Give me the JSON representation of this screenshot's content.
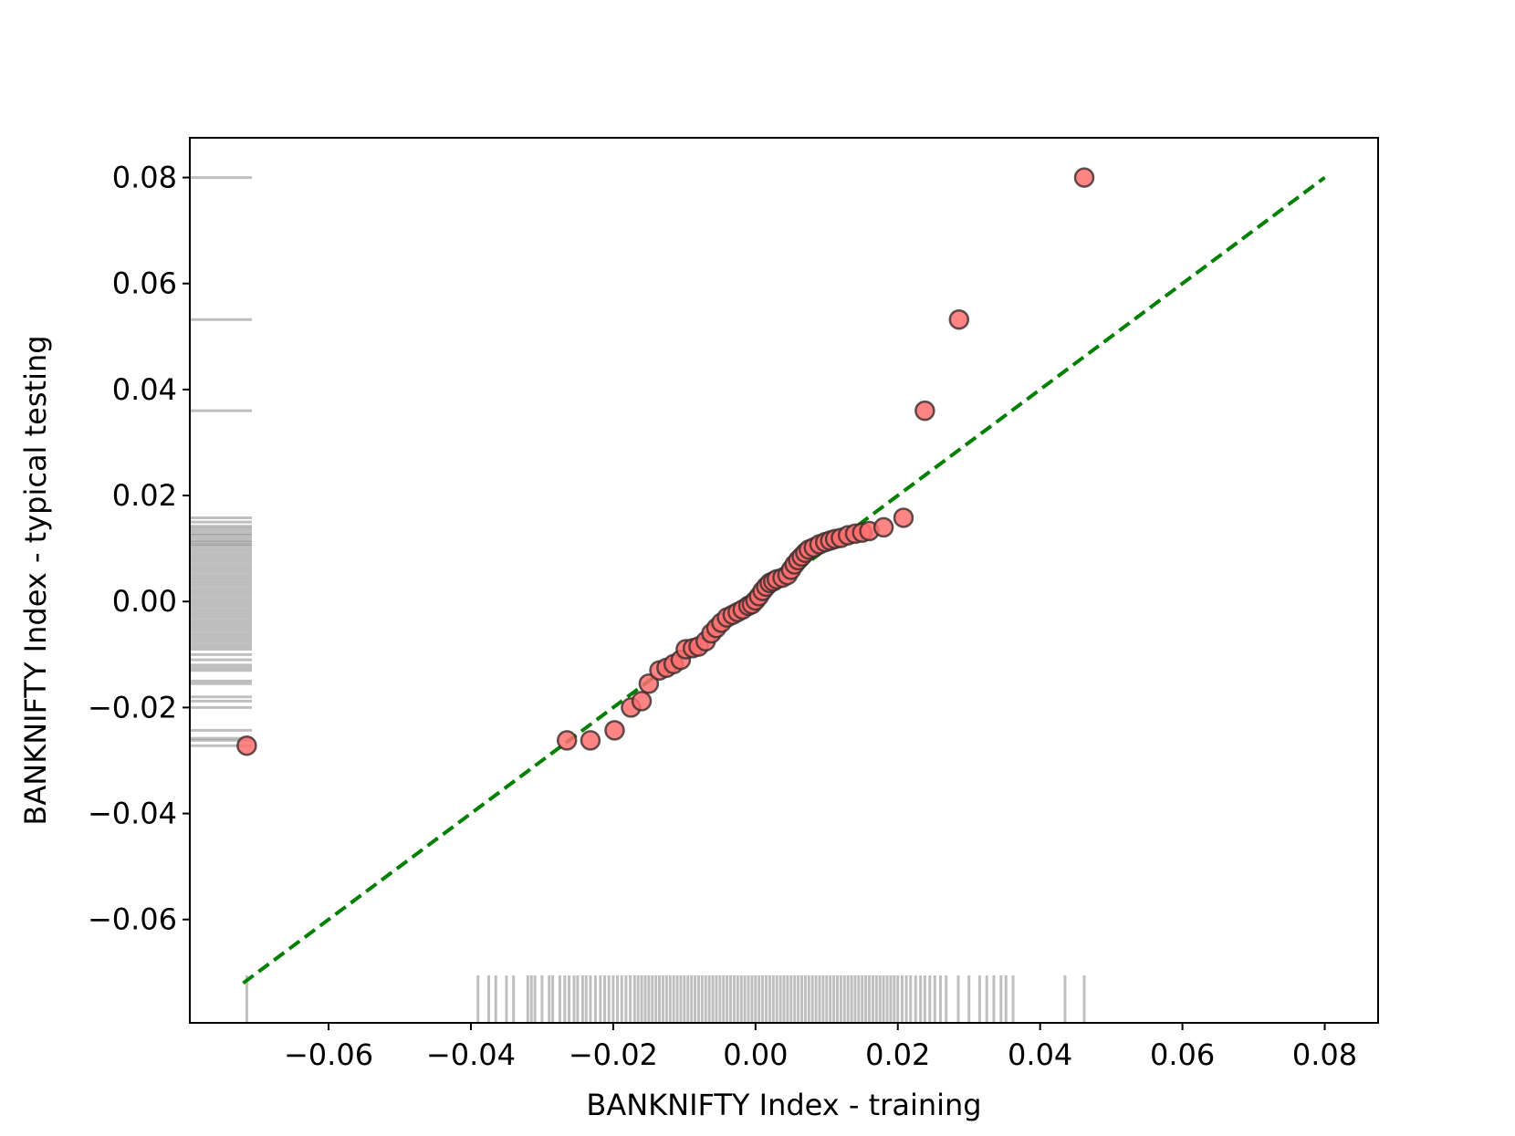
{
  "chart_data": {
    "type": "scatter",
    "title": "",
    "xlabel": "BANKNIFTY Index  - training",
    "ylabel": "BANKNIFTY Index - typical testing",
    "xlim": [
      -0.0795,
      0.0875
    ],
    "ylim": [
      -0.0795,
      0.0875
    ],
    "x_ticks": [
      -0.06,
      -0.04,
      -0.02,
      0.0,
      0.02,
      0.04,
      0.06,
      0.08
    ],
    "x_tick_labels": [
      "−0.06",
      "−0.04",
      "−0.02",
      "0.00",
      "0.02",
      "0.04",
      "0.06",
      "0.08"
    ],
    "y_ticks": [
      -0.06,
      -0.04,
      -0.02,
      0.0,
      0.02,
      0.04,
      0.06,
      0.08
    ],
    "y_tick_labels": [
      "−0.06",
      "−0.04",
      "−0.02",
      "0.00",
      "0.02",
      "0.04",
      "0.06",
      "0.08"
    ],
    "grid": false,
    "reference_line": {
      "from": [
        -0.072,
        -0.072
      ],
      "to": [
        0.08,
        0.08
      ],
      "style": "dashed",
      "color": "#008000"
    },
    "colors": {
      "marker_fill": "#ff6f6f",
      "marker_edge": "#3a2a2a",
      "rug": "#808080",
      "line": "#008000"
    },
    "series": [
      {
        "points": [
          [
            -0.0715,
            -0.0272
          ],
          [
            -0.0265,
            -0.0262
          ],
          [
            -0.0232,
            -0.0262
          ],
          [
            -0.0198,
            -0.0243
          ],
          [
            -0.0175,
            -0.02
          ],
          [
            -0.016,
            -0.0188
          ],
          [
            -0.015,
            -0.0155
          ],
          [
            -0.0135,
            -0.013
          ],
          [
            -0.0125,
            -0.0125
          ],
          [
            -0.0115,
            -0.0118
          ],
          [
            -0.0105,
            -0.011
          ],
          [
            -0.0098,
            -0.009
          ],
          [
            -0.0088,
            -0.0088
          ],
          [
            -0.008,
            -0.0085
          ],
          [
            -0.007,
            -0.0075
          ],
          [
            -0.0062,
            -0.006
          ],
          [
            -0.0055,
            -0.005
          ],
          [
            -0.0048,
            -0.004
          ],
          [
            -0.004,
            -0.003
          ],
          [
            -0.0032,
            -0.0025
          ],
          [
            -0.0025,
            -0.002
          ],
          [
            -0.0018,
            -0.0015
          ],
          [
            -0.001,
            -0.0008
          ],
          [
            -0.0005,
            -0.0005
          ],
          [
            0.0,
            0.0002
          ],
          [
            0.0005,
            0.001
          ],
          [
            0.001,
            0.002
          ],
          [
            0.0015,
            0.0028
          ],
          [
            0.002,
            0.0035
          ],
          [
            0.0025,
            0.0038
          ],
          [
            0.003,
            0.0042
          ],
          [
            0.0038,
            0.0045
          ],
          [
            0.0045,
            0.005
          ],
          [
            0.005,
            0.006
          ],
          [
            0.0055,
            0.007
          ],
          [
            0.006,
            0.0078
          ],
          [
            0.0065,
            0.0085
          ],
          [
            0.007,
            0.0092
          ],
          [
            0.0075,
            0.0098
          ],
          [
            0.0082,
            0.0102
          ],
          [
            0.009,
            0.0108
          ],
          [
            0.0098,
            0.0112
          ],
          [
            0.0105,
            0.0115
          ],
          [
            0.0112,
            0.0118
          ],
          [
            0.012,
            0.012
          ],
          [
            0.013,
            0.0125
          ],
          [
            0.014,
            0.0128
          ],
          [
            0.015,
            0.013
          ],
          [
            0.016,
            0.0133
          ],
          [
            0.018,
            0.014
          ],
          [
            0.0208,
            0.0158
          ],
          [
            0.0238,
            0.036
          ],
          [
            0.0286,
            0.0532
          ],
          [
            0.0462,
            0.08
          ]
        ]
      }
    ],
    "rug_x": [
      -0.0715,
      -0.039,
      -0.0375,
      -0.0365,
      -0.035,
      -0.034,
      -0.032,
      -0.0315,
      -0.031,
      -0.03,
      -0.029,
      -0.0285,
      -0.0275,
      -0.0268,
      -0.0262,
      -0.0255,
      -0.025,
      -0.0243,
      -0.0238,
      -0.0232,
      -0.0225,
      -0.0218,
      -0.0212,
      -0.0206,
      -0.02,
      -0.0194,
      -0.0188,
      -0.0182,
      -0.0176,
      -0.017,
      -0.0165,
      -0.016,
      -0.0155,
      -0.015,
      -0.0145,
      -0.014,
      -0.0135,
      -0.013,
      -0.0125,
      -0.012,
      -0.0115,
      -0.011,
      -0.0105,
      -0.01,
      -0.0095,
      -0.009,
      -0.0085,
      -0.008,
      -0.0075,
      -0.007,
      -0.0065,
      -0.006,
      -0.0055,
      -0.005,
      -0.0045,
      -0.004,
      -0.0035,
      -0.003,
      -0.0025,
      -0.002,
      -0.0015,
      -0.001,
      -0.0005,
      0.0,
      0.0005,
      0.001,
      0.0015,
      0.002,
      0.0025,
      0.003,
      0.0035,
      0.004,
      0.0045,
      0.005,
      0.0055,
      0.006,
      0.0065,
      0.007,
      0.0075,
      0.008,
      0.0085,
      0.009,
      0.0095,
      0.01,
      0.0105,
      0.011,
      0.0115,
      0.012,
      0.0125,
      0.013,
      0.0135,
      0.014,
      0.0145,
      0.015,
      0.0155,
      0.016,
      0.0165,
      0.017,
      0.0175,
      0.018,
      0.0185,
      0.019,
      0.0195,
      0.02,
      0.0206,
      0.0212,
      0.0218,
      0.0225,
      0.0232,
      0.0238,
      0.0245,
      0.0252,
      0.026,
      0.0268,
      0.0285,
      0.03,
      0.0315,
      0.0325,
      0.0335,
      0.0345,
      0.0352,
      0.0362,
      0.0435,
      0.0462
    ],
    "rug_y": [
      0.08,
      0.0532,
      0.036,
      0.0158,
      0.015,
      0.0142,
      0.0138,
      0.0133,
      0.0128,
      0.0125,
      0.012,
      0.0115,
      0.0112,
      0.0108,
      0.0105,
      0.01,
      0.0095,
      0.009,
      0.0085,
      0.008,
      0.0075,
      0.007,
      0.0065,
      0.006,
      0.0055,
      0.005,
      0.0045,
      0.004,
      0.0035,
      0.003,
      0.0025,
      0.002,
      0.0015,
      0.001,
      0.0005,
      0.0,
      -0.0005,
      -0.001,
      -0.0015,
      -0.002,
      -0.0025,
      -0.003,
      -0.0035,
      -0.004,
      -0.0045,
      -0.005,
      -0.0055,
      -0.006,
      -0.0065,
      -0.007,
      -0.0075,
      -0.008,
      -0.0085,
      -0.009,
      -0.01,
      -0.011,
      -0.012,
      -0.0125,
      -0.013,
      -0.015,
      -0.0155,
      -0.018,
      -0.0188,
      -0.02,
      -0.0243,
      -0.0258,
      -0.0262,
      -0.0272
    ]
  }
}
